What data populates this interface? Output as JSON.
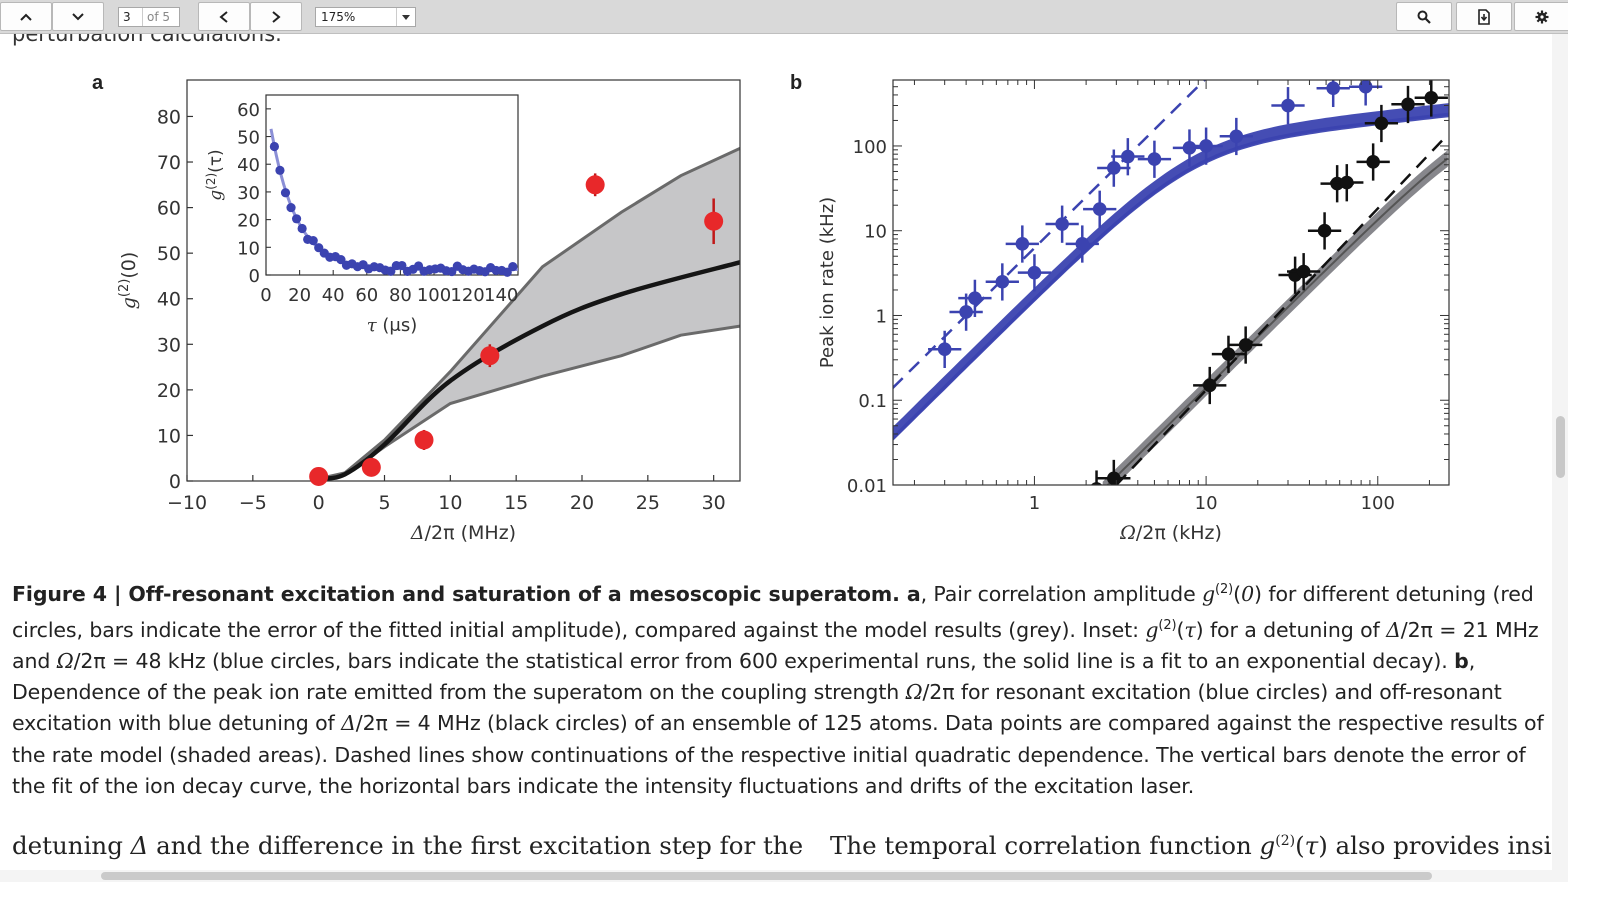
{
  "toolbar": {
    "page_current": "3",
    "page_of": "of 5",
    "zoom": "175%",
    "icons": [
      "chevron-up-icon",
      "chevron-down-icon",
      "arrow-left-icon",
      "arrow-right-icon",
      "search-icon",
      "download-icon",
      "gear-icon"
    ]
  },
  "page": {
    "cut_text": "perturbation calculations.",
    "panel_a": "a",
    "panel_b": "b",
    "body_left": "detuning Δ and the difference in the first excitation step for the",
    "body_right_pre": "The temporal correlation function ",
    "body_right_post": " also provides insight"
  },
  "caption": {
    "bold": "Figure 4 | Off-resonant excitation and saturation of a mesoscopic superatom. a",
    "text": ", Pair correlation amplitude g(2)(0) for different detuning (red circles, bars indicate the error of the fitted initial amplitude), compared against the model results (grey). Inset: g(2)(τ) for a detuning of Δ/2π = 21 MHz and Ω/2π = 48 kHz (blue circles, bars indicate the statistical error from 600 experimental runs, the solid line is a fit to an exponential decay). ",
    "bold_b": "b",
    "text_b": ", Dependence of the peak ion rate emitted from the superatom on the coupling strength Ω/2π for resonant excitation (blue circles) and off-resonant excitation with blue detuning of Δ/2π = 4 MHz (black circles) of an ensemble of 125 atoms. Data points are compared against the respective results of the rate model (shaded areas). Dashed lines show continuations of the respective initial quadratic dependence. The vertical bars denote the error of the fit of the ion decay curve, the horizontal bars indicate the intensity fluctuations and drifts of the excitation laser."
  },
  "chart_data": [
    {
      "type": "scatter",
      "panel": "a",
      "xlabel": "Δ/2π (MHz)",
      "ylabel": "g(2)(0)",
      "xlim": [
        -10,
        32
      ],
      "ylim": [
        0,
        88
      ],
      "xticks": [
        -10,
        -5,
        0,
        5,
        10,
        15,
        20,
        25,
        30
      ],
      "yticks": [
        0,
        10,
        20,
        30,
        40,
        50,
        60,
        70,
        80
      ],
      "xtick_labels": [
        "−10",
        "−5",
        "0",
        "5",
        "10",
        "15",
        "20",
        "25",
        "30"
      ],
      "series": [
        {
          "x": [
            0,
            4,
            8,
            13,
            21,
            30
          ],
          "y": [
            1,
            3,
            9,
            27.5,
            65,
            57
          ],
          "err": [
            1.5,
            1.8,
            2.2,
            2.5,
            2.5,
            5
          ]
        }
      ],
      "model_mid": {
        "x": [
          0,
          2,
          5,
          10,
          17,
          23,
          32
        ],
        "y": [
          0.5,
          1.5,
          8,
          22,
          34,
          41,
          48
        ]
      },
      "model_band_upper": {
        "x": [
          0,
          2,
          5,
          10,
          17,
          23,
          27.5,
          32
        ],
        "y": [
          0.5,
          1.8,
          9,
          24,
          47,
          59,
          67,
          73
        ]
      },
      "model_band_lower": {
        "x": [
          0,
          2,
          5,
          10,
          17,
          23,
          27.5,
          32
        ],
        "y": [
          0.5,
          1.3,
          7.5,
          17,
          23,
          27.5,
          32,
          34
        ]
      },
      "colors": {
        "points": "#e8282a",
        "band": "#c6c6c8",
        "band_edge": "#6a6a6a",
        "model": "#151515"
      }
    },
    {
      "type": "scatter",
      "panel": "a-inset",
      "xlabel": "τ (μs)",
      "ylabel": "g(2)(τ)",
      "xlim": [
        0,
        150
      ],
      "ylim": [
        0,
        65
      ],
      "xticks": [
        0,
        20,
        40,
        60,
        80,
        100,
        120,
        140
      ],
      "yticks": [
        0,
        10,
        20,
        30,
        40,
        50,
        60
      ],
      "fit": {
        "model": "exponential",
        "A": 62,
        "tau": 15,
        "offset": 2
      },
      "colors": {
        "points": "#3b43b0",
        "fit": "#8b8fd6"
      }
    },
    {
      "type": "scatter",
      "panel": "b",
      "xlabel": "Ω/2π (kHz)",
      "ylabel": "Peak ion rate (kHz)",
      "xscale": "log",
      "yscale": "log",
      "xlim": [
        0.15,
        260
      ],
      "ylim": [
        0.01,
        600
      ],
      "xticks": [
        1,
        10,
        100
      ],
      "yticks": [
        0.01,
        0.1,
        1,
        10,
        100
      ],
      "ytick_labels": [
        "0.01",
        "0.1",
        "1",
        "10",
        "100"
      ],
      "series": [
        {
          "name": "resonant",
          "x": [
            0.3,
            0.4,
            0.45,
            0.65,
            0.85,
            1.0,
            1.45,
            1.9,
            2.4,
            2.9,
            3.5,
            5.0,
            8.0,
            10,
            15,
            30,
            55,
            85
          ],
          "y": [
            0.4,
            1.1,
            1.6,
            2.5,
            7.0,
            3.2,
            12,
            7.0,
            18,
            55,
            75,
            70,
            95,
            100,
            130,
            300,
            480,
            500
          ]
        },
        {
          "name": "off-resonant",
          "x": [
            2.3,
            2.9,
            10.5,
            13.5,
            17,
            33,
            37,
            49,
            58,
            66,
            94,
            105,
            150,
            205
          ],
          "y": [
            0.009,
            0.012,
            0.15,
            0.35,
            0.45,
            3.0,
            3.3,
            10,
            36,
            37,
            65,
            185,
            310,
            370
          ]
        }
      ],
      "dashed": [
        {
          "name": "resonant-quadratic",
          "x": [
            0.12,
            12
          ],
          "y": [
            0.09,
            900
          ]
        },
        {
          "name": "off-resonant-quadratic",
          "x": [
            3,
            250
          ],
          "y": [
            0.01,
            130
          ]
        }
      ],
      "colors": {
        "resonant": "#3b43b0",
        "off_resonant": "#111111",
        "model_shade": "#7a7a80"
      }
    }
  ]
}
